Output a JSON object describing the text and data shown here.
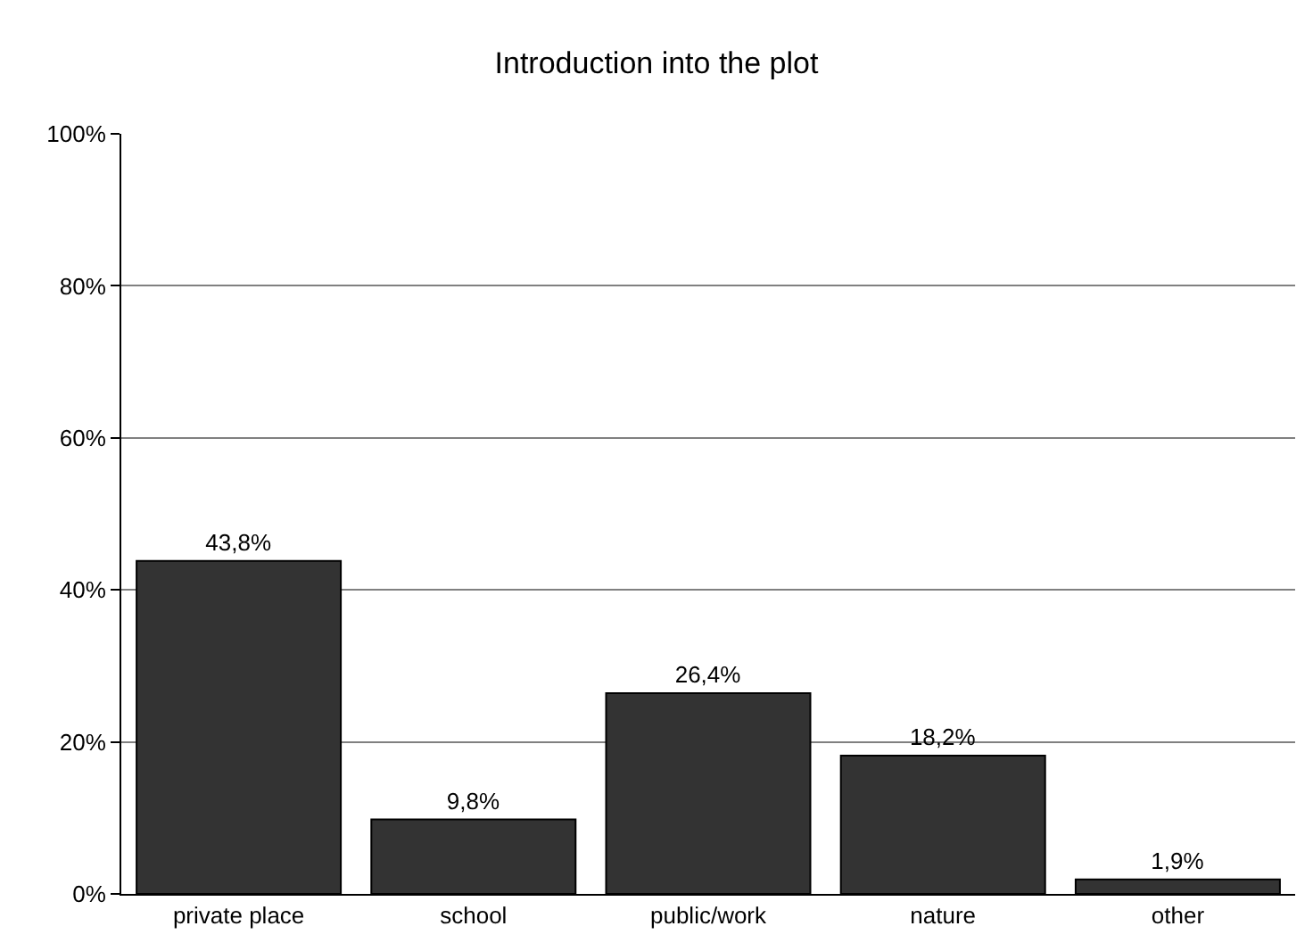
{
  "chart_data": {
    "type": "bar",
    "title": "Introduction into the plot",
    "categories": [
      "private place",
      "school",
      "public/work",
      "nature",
      "other"
    ],
    "values": [
      43.8,
      9.8,
      26.4,
      18.2,
      1.9
    ],
    "value_labels": [
      "43,8%",
      "9,8%",
      "26,4%",
      "18,2%",
      "1,9%"
    ],
    "color": "#333333",
    "ylim": [
      0,
      100
    ],
    "yticks": [
      {
        "value": 0,
        "label": "0%"
      },
      {
        "value": 20,
        "label": "20%"
      },
      {
        "value": 40,
        "label": "40%"
      },
      {
        "value": 60,
        "label": "60%"
      },
      {
        "value": 80,
        "label": "80%"
      },
      {
        "value": 100,
        "label": "100%"
      }
    ],
    "grid": "y"
  }
}
